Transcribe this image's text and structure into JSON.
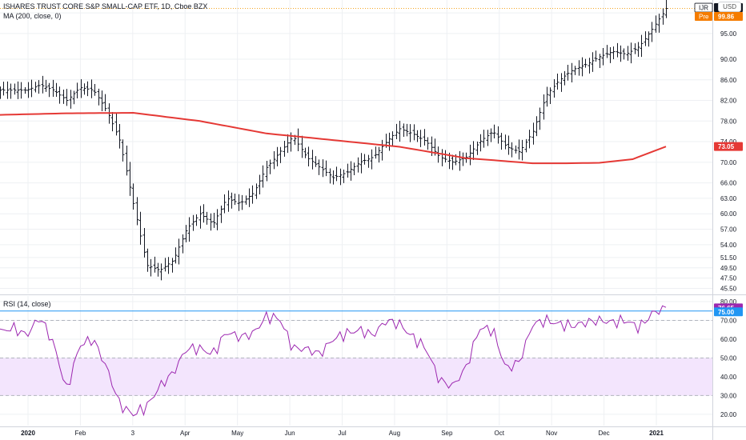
{
  "chart_title": "ISHARES TRUST CORE S&P SMALL-CAP ETF, 1D, Cboe BZX",
  "ma_label": "MA (200, close, 0)",
  "rsi_label": "RSI (14, close)",
  "currency": "USD",
  "colors": {
    "ohlc": "#131722",
    "ma": "#e53935",
    "rsi": "#9c27b0",
    "rsi_band_fill": "#f3e5fd",
    "last_line": "#f5a623",
    "level75": "#2196f3",
    "grid": "#eef0f3",
    "axis_text": "#131722"
  },
  "price_axis": {
    "ticks": [
      "99.00",
      "95.00",
      "90.00",
      "86.00",
      "82.00",
      "78.00",
      "74.00",
      "70.00",
      "66.00",
      "63.00",
      "60.00",
      "57.00",
      "54.00",
      "51.50",
      "49.50",
      "47.50",
      "45.50"
    ],
    "tags": [
      {
        "name": "ticker-tag",
        "label": "IJR",
        "value": "99.86",
        "kind": "dark"
      },
      {
        "name": "pre-tag",
        "label": "Pre",
        "value": "99.86",
        "kind": "orange"
      },
      {
        "name": "ma-tag",
        "label": "",
        "value": "73.05",
        "kind": "red"
      }
    ]
  },
  "rsi_axis": {
    "ticks": [
      "80.00",
      "70.00",
      "60.00",
      "50.00",
      "40.00",
      "30.00",
      "20.00"
    ],
    "tags": [
      {
        "name": "rsi-value-tag",
        "value": "76.65",
        "kind": "purple"
      },
      {
        "name": "rsi-level-tag",
        "value": "75.00",
        "kind": "blue"
      }
    ]
  },
  "time_axis": [
    "2020",
    "Feb",
    "3",
    "Apr",
    "May",
    "Jun",
    "Jul",
    "Aug",
    "Sep",
    "Oct",
    "Nov",
    "Dec",
    "2021"
  ],
  "chart_data": {
    "type": "line",
    "price": {
      "series": [
        {
          "name": "IJR",
          "style": "ohlc-bars",
          "x": [
            0.0,
            0.02,
            0.04,
            0.06,
            0.08,
            0.1,
            0.12,
            0.14,
            0.16,
            0.18,
            0.2,
            0.22,
            0.24,
            0.26,
            0.28,
            0.3,
            0.32,
            0.34,
            0.36,
            0.38,
            0.4,
            0.42,
            0.44,
            0.46,
            0.48,
            0.5,
            0.52,
            0.54,
            0.56,
            0.58,
            0.6,
            0.62,
            0.64,
            0.66,
            0.68,
            0.7,
            0.72,
            0.74,
            0.76,
            0.78,
            0.8,
            0.82,
            0.84,
            0.86,
            0.88,
            0.9,
            0.92,
            0.94,
            0.96,
            0.98,
            1.0
          ],
          "close": [
            84.0,
            84.0,
            84.0,
            85.0,
            84.0,
            82.0,
            84.5,
            84.0,
            80.0,
            74.0,
            62.0,
            50.0,
            49.0,
            51.0,
            57.0,
            60.0,
            58.0,
            63.0,
            62.0,
            64.0,
            69.0,
            72.0,
            75.0,
            71.0,
            69.0,
            67.0,
            68.0,
            70.0,
            71.0,
            74.0,
            76.5,
            75.5,
            74.0,
            71.0,
            70.0,
            71.0,
            74.0,
            76.0,
            73.0,
            72.0,
            76.0,
            83.0,
            86.0,
            88.0,
            89.0,
            90.5,
            91.5,
            91.0,
            92.5,
            96.0,
            99.86
          ]
        },
        {
          "name": "MA (200, close, 0)",
          "style": "line",
          "x": [
            0.0,
            0.1,
            0.2,
            0.3,
            0.4,
            0.5,
            0.6,
            0.7,
            0.8,
            0.85,
            0.9,
            0.95,
            1.0
          ],
          "values": [
            79.2,
            79.5,
            79.6,
            78.0,
            75.6,
            74.3,
            73.0,
            70.8,
            69.8,
            69.8,
            69.9,
            70.6,
            73.05
          ]
        }
      ],
      "ylim": [
        44.5,
        101.5
      ]
    },
    "rsi": {
      "series": [
        {
          "name": "RSI (14, close)",
          "x": [
            0.0,
            0.02,
            0.04,
            0.06,
            0.08,
            0.1,
            0.12,
            0.14,
            0.16,
            0.18,
            0.2,
            0.22,
            0.24,
            0.26,
            0.28,
            0.3,
            0.32,
            0.34,
            0.36,
            0.38,
            0.4,
            0.42,
            0.44,
            0.46,
            0.48,
            0.5,
            0.52,
            0.54,
            0.56,
            0.58,
            0.6,
            0.62,
            0.64,
            0.66,
            0.68,
            0.7,
            0.72,
            0.74,
            0.76,
            0.78,
            0.8,
            0.82,
            0.84,
            0.86,
            0.88,
            0.9,
            0.92,
            0.94,
            0.96,
            0.98,
            1.0
          ],
          "values": [
            64.0,
            66.0,
            62.0,
            72.0,
            58.0,
            33.0,
            57.0,
            60.0,
            45.0,
            25.0,
            20.0,
            24.0,
            35.0,
            42.0,
            55.0,
            55.0,
            52.0,
            64.0,
            61.0,
            63.0,
            72.0,
            71.0,
            55.0,
            55.0,
            52.0,
            60.0,
            63.0,
            65.0,
            62.0,
            70.0,
            68.0,
            61.0,
            55.0,
            38.0,
            35.0,
            45.0,
            66.0,
            65.0,
            44.0,
            48.0,
            68.0,
            70.0,
            68.0,
            67.0,
            69.0,
            70.0,
            69.0,
            70.0,
            66.0,
            74.0,
            76.65
          ]
        }
      ],
      "levels": [
        70,
        50,
        30
      ],
      "band": [
        30,
        50
      ],
      "ylim": [
        14.0,
        83.0
      ]
    }
  }
}
